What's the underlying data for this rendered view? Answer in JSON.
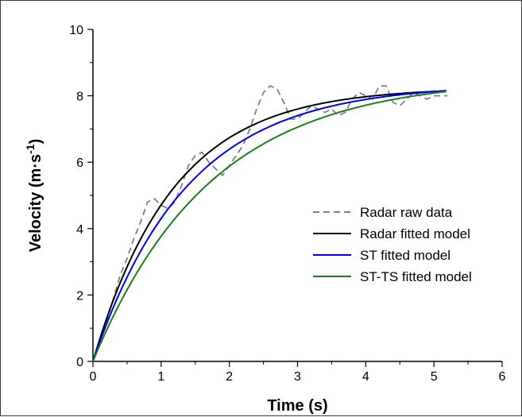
{
  "chart_data": {
    "type": "line",
    "title": "",
    "xlabel": "Time (s)",
    "ylabel_main": "Velocity (m·s",
    "ylabel_sup": "-1",
    "ylabel_close": ")",
    "xlim": [
      0,
      6
    ],
    "ylim": [
      0,
      10
    ],
    "x_ticks": [
      0,
      1,
      2,
      3,
      4,
      5,
      6
    ],
    "y_ticks": [
      0,
      2,
      4,
      6,
      8,
      10
    ],
    "x_tick_labels": [
      "0",
      "1",
      "2",
      "3",
      "4",
      "5",
      "6"
    ],
    "y_tick_labels": [
      "0",
      "2",
      "4",
      "6",
      "8",
      "10"
    ],
    "grid": false,
    "legend_position": "center-right",
    "series": [
      {
        "name": "Radar raw data",
        "color": "#808080",
        "style": "dashed",
        "x": [
          0,
          0.1,
          0.2,
          0.3,
          0.4,
          0.5,
          0.6,
          0.7,
          0.8,
          0.9,
          1.0,
          1.1,
          1.2,
          1.3,
          1.4,
          1.5,
          1.6,
          1.7,
          1.8,
          1.9,
          2.0,
          2.1,
          2.2,
          2.3,
          2.4,
          2.5,
          2.6,
          2.7,
          2.8,
          2.9,
          3.0,
          3.1,
          3.2,
          3.3,
          3.4,
          3.5,
          3.6,
          3.7,
          3.8,
          3.9,
          4.0,
          4.1,
          4.2,
          4.3,
          4.4,
          4.5,
          4.6,
          4.7,
          4.8,
          4.9,
          5.0,
          5.1,
          5.2
        ],
        "values": [
          0,
          0.6,
          1.2,
          1.9,
          2.6,
          3.1,
          3.7,
          4.2,
          4.8,
          4.9,
          4.7,
          4.6,
          4.8,
          5.3,
          5.9,
          6.2,
          6.3,
          6.0,
          5.8,
          5.6,
          5.9,
          6.2,
          6.5,
          7.0,
          7.6,
          8.1,
          8.3,
          8.2,
          7.8,
          7.3,
          7.3,
          7.5,
          7.7,
          7.6,
          7.5,
          7.6,
          7.4,
          7.5,
          7.9,
          8.1,
          8.0,
          7.9,
          8.3,
          8.3,
          7.8,
          7.7,
          7.9,
          8.1,
          8.0,
          7.9,
          8.0,
          8.0,
          8.0
        ]
      },
      {
        "name": "Radar fitted model",
        "color": "#000000",
        "style": "solid",
        "model": {
          "vmax": 8.25,
          "tau": 1.18,
          "xmax": 5.18
        }
      },
      {
        "name": "ST fitted model",
        "color": "#0000ee",
        "style": "solid",
        "model": {
          "vmax": 8.35,
          "tau": 1.38,
          "xmax": 5.18
        }
      },
      {
        "name": "ST-TS fitted model",
        "color": "#1a7f1a",
        "style": "solid",
        "model": {
          "vmax": 8.55,
          "tau": 1.72,
          "xmax": 5.18
        }
      }
    ]
  }
}
